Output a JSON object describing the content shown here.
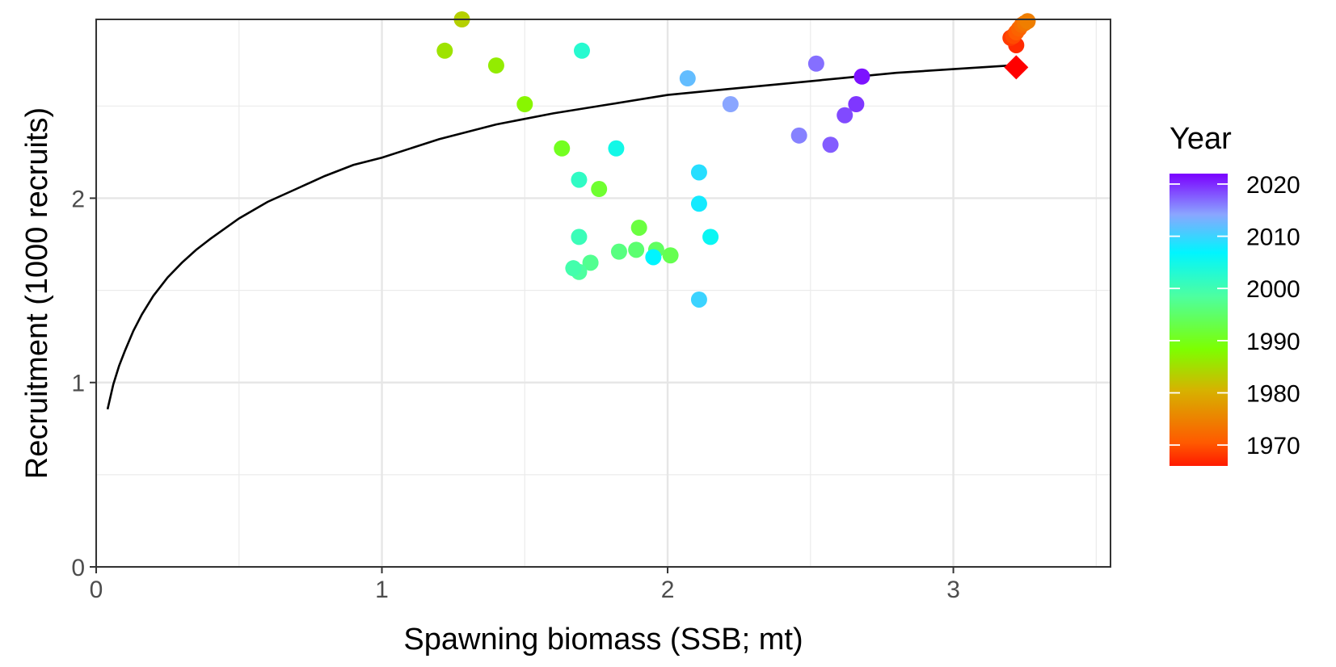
{
  "chart_data": {
    "type": "scatter",
    "xlabel": "Spawning biomass (SSB; mt)",
    "ylabel": "Recruitment (1000 recruits)",
    "xlim": [
      0,
      3.55
    ],
    "ylim": [
      0,
      2.97
    ],
    "x_ticks": [
      0,
      1,
      2,
      3
    ],
    "y_ticks": [
      0,
      1,
      2
    ],
    "x_tick_labels": [
      "0",
      "1",
      "2",
      "3"
    ],
    "y_tick_labels": [
      "0",
      "1",
      "2"
    ],
    "grid": true,
    "legend": {
      "title": "Year",
      "placement": "right",
      "type": "colorbar",
      "range": [
        1966,
        2022
      ],
      "breaks": [
        1970,
        1980,
        1990,
        2000,
        2010,
        2020
      ],
      "labels": [
        "1970",
        "1980",
        "1990",
        "2000",
        "2010",
        "2020"
      ]
    },
    "curve": {
      "type": "line",
      "color": "#000000",
      "x": [
        0.04,
        0.06,
        0.08,
        0.1,
        0.13,
        0.16,
        0.2,
        0.25,
        0.3,
        0.35,
        0.4,
        0.5,
        0.6,
        0.7,
        0.8,
        0.9,
        1.0,
        1.2,
        1.4,
        1.6,
        1.8,
        2.0,
        2.2,
        2.4,
        2.6,
        2.8,
        3.0,
        3.2
      ],
      "y": [
        0.855,
        0.99,
        1.09,
        1.17,
        1.28,
        1.37,
        1.47,
        1.57,
        1.65,
        1.72,
        1.78,
        1.89,
        1.98,
        2.05,
        2.12,
        2.18,
        2.22,
        2.32,
        2.4,
        2.46,
        2.51,
        2.56,
        2.59,
        2.62,
        2.65,
        2.68,
        2.7,
        2.72
      ]
    },
    "points": [
      {
        "year": 1966,
        "x": 3.22,
        "y": 2.71,
        "shape": "diamond"
      },
      {
        "year": 1967,
        "x": 3.22,
        "y": 2.83
      },
      {
        "year": 1968,
        "x": 3.2,
        "y": 2.87
      },
      {
        "year": 1969,
        "x": 3.21,
        "y": 2.88
      },
      {
        "year": 1970,
        "x": 3.22,
        "y": 2.9
      },
      {
        "year": 1971,
        "x": 3.23,
        "y": 2.92
      },
      {
        "year": 1972,
        "x": 3.24,
        "y": 2.94
      },
      {
        "year": 1973,
        "x": 3.25,
        "y": 2.95
      },
      {
        "year": 1974,
        "x": 3.26,
        "y": 2.96
      },
      {
        "year": 1983,
        "x": 1.28,
        "y": 2.97
      },
      {
        "year": 1985,
        "x": 1.22,
        "y": 2.8
      },
      {
        "year": 1986,
        "x": 1.4,
        "y": 2.72
      },
      {
        "year": 1987,
        "x": 1.5,
        "y": 2.51
      },
      {
        "year": 1990,
        "x": 1.63,
        "y": 2.27
      },
      {
        "year": 1991,
        "x": 1.76,
        "y": 2.05
      },
      {
        "year": 1992,
        "x": 1.9,
        "y": 1.84
      },
      {
        "year": 1993,
        "x": 2.01,
        "y": 1.69
      },
      {
        "year": 1994,
        "x": 1.96,
        "y": 1.72
      },
      {
        "year": 1995,
        "x": 1.89,
        "y": 1.72
      },
      {
        "year": 1996,
        "x": 1.83,
        "y": 1.71
      },
      {
        "year": 1997,
        "x": 1.73,
        "y": 1.65
      },
      {
        "year": 1998,
        "x": 1.69,
        "y": 1.6
      },
      {
        "year": 1999,
        "x": 1.67,
        "y": 1.62
      },
      {
        "year": 2000,
        "x": 1.69,
        "y": 1.79
      },
      {
        "year": 2001,
        "x": 1.69,
        "y": 2.1
      },
      {
        "year": 2002,
        "x": 1.7,
        "y": 2.8
      },
      {
        "year": 2004,
        "x": 1.82,
        "y": 2.27
      },
      {
        "year": 2005,
        "x": 2.15,
        "y": 1.79
      },
      {
        "year": 2006,
        "x": 1.95,
        "y": 1.68
      },
      {
        "year": 2007,
        "x": 2.11,
        "y": 1.97
      },
      {
        "year": 2008,
        "x": 2.11,
        "y": 2.14
      },
      {
        "year": 2009,
        "x": 2.11,
        "y": 1.45
      },
      {
        "year": 2011,
        "x": 2.07,
        "y": 2.65
      },
      {
        "year": 2013,
        "x": 2.22,
        "y": 2.51
      },
      {
        "year": 2015,
        "x": 2.46,
        "y": 2.34
      },
      {
        "year": 2016,
        "x": 2.52,
        "y": 2.73
      },
      {
        "year": 2017,
        "x": 2.57,
        "y": 2.29
      },
      {
        "year": 2018,
        "x": 2.62,
        "y": 2.45
      },
      {
        "year": 2019,
        "x": 2.66,
        "y": 2.51
      },
      {
        "year": 2021,
        "x": 2.68,
        "y": 2.66
      }
    ]
  }
}
